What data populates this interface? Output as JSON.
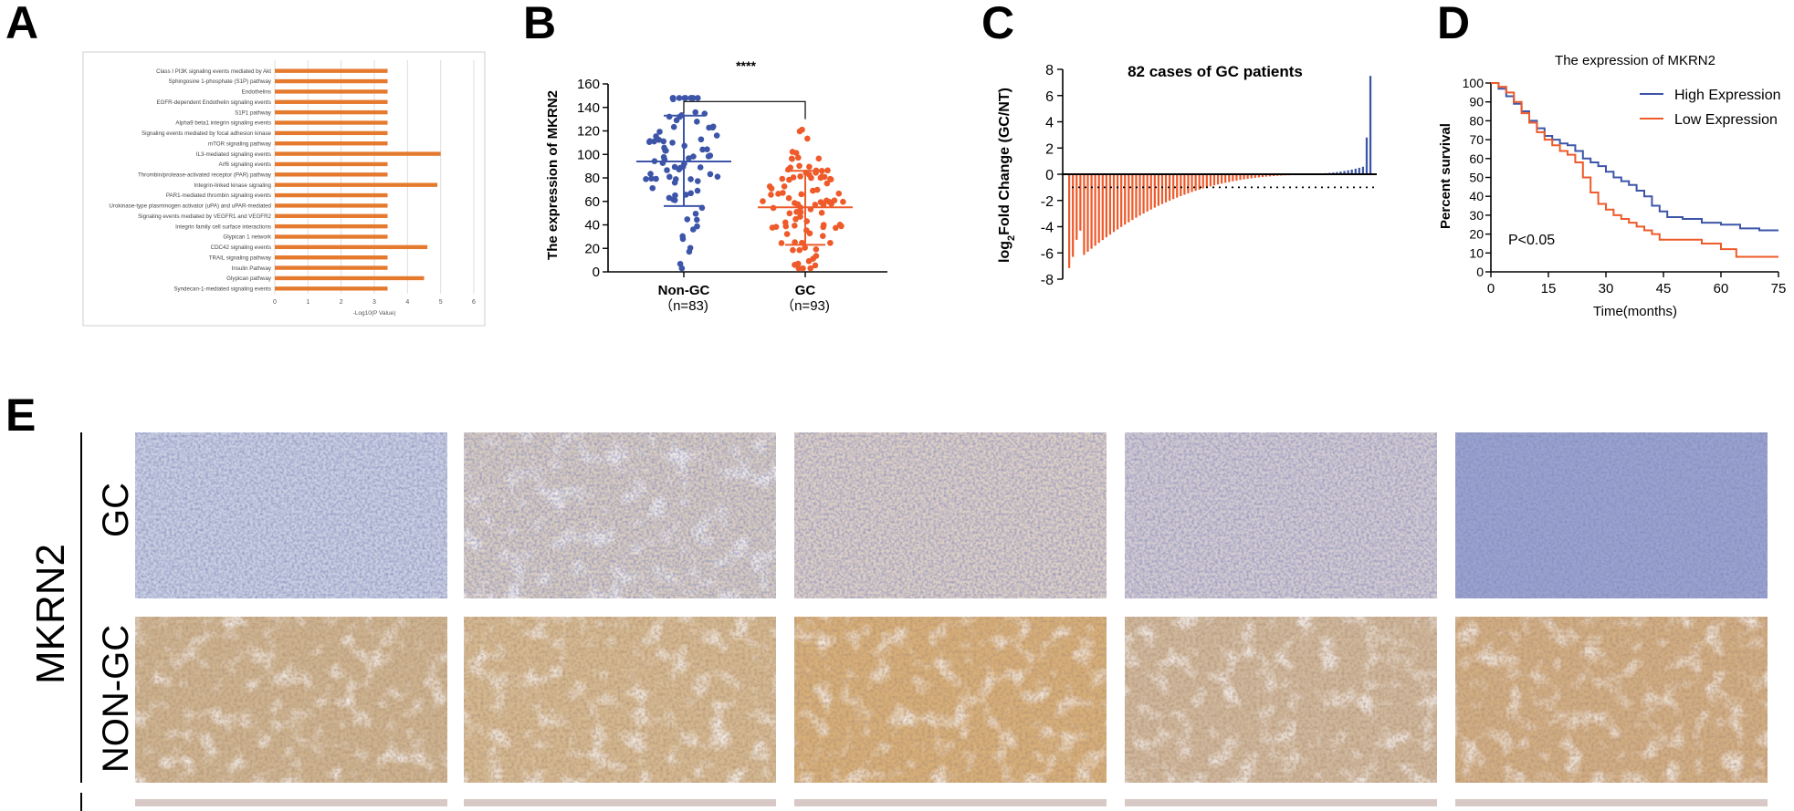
{
  "panel_letters": [
    "A",
    "B",
    "C",
    "D",
    "E"
  ],
  "chart_data": [
    {
      "panel": "A",
      "type": "bar",
      "orientation": "horizontal",
      "categories": [
        "Class I PI3K signaling events mediated by Akt",
        "Sphingosine 1-phosphate (S1P) pathway",
        "Endothelins",
        "EGFR-dependent Endothelin signaling events",
        "S1P1 pathway",
        "Alpha9 beta1 integrin signaling events",
        "Signaling events mediated by focal adhesion kinase",
        "mTOR signaling pathway",
        "IL3-mediated signaling events",
        "Arf6 signaling events",
        "Thrombin/protease-activated receptor (PAR) pathway",
        "Integrin-linked kinase signaling",
        "PAR1-mediated thrombin signaling events",
        "Urokinase-type plasminogen activator (uPA) and uPAR-mediated",
        "Signaling events mediated by VEGFR1 and VEGFR2",
        "Integrin family cell surface interactions",
        "Glypican 1 network",
        "CDC42 signaling events",
        "TRAIL signaling pathway",
        "Insulin Pathway",
        "Glypican pathway",
        "Syndecan-1-mediated signaling events"
      ],
      "values": [
        3.4,
        3.4,
        3.4,
        3.4,
        3.4,
        3.4,
        3.4,
        3.4,
        5.0,
        3.4,
        3.4,
        4.9,
        3.4,
        3.4,
        3.4,
        3.4,
        3.4,
        4.6,
        3.4,
        3.4,
        4.5,
        3.4
      ],
      "xlabel": "-Log10(P Value)",
      "xticks": [
        "0",
        "1",
        "2",
        "3",
        "4",
        "5",
        "6"
      ],
      "xlim": [
        0,
        6
      ],
      "grid": true,
      "bar_color": "#e57a2e"
    },
    {
      "panel": "B",
      "type": "scatter",
      "ylabel": "The expression of MKRN2",
      "ylim": [
        0,
        160
      ],
      "yticks": [
        "0",
        "20",
        "40",
        "60",
        "80",
        "100",
        "120",
        "140",
        "160"
      ],
      "groups": [
        {
          "name": "Non-GC",
          "n_label": "（n=83)",
          "n": 83,
          "mean": 94,
          "sd_low": 56,
          "sd_high": 133,
          "color": "#3d55a8"
        },
        {
          "name": "GC",
          "n_label": "（n=93)",
          "n": 93,
          "mean": 55,
          "sd_low": 23,
          "sd_high": 86,
          "color": "#ee5a2a"
        }
      ],
      "significance": "****"
    },
    {
      "panel": "C",
      "type": "bar",
      "title": "82 cases of GC patients",
      "ylabel_base": "log",
      "ylabel_sub": "2",
      "ylabel_rest": "Fold Change (GC/NT)",
      "ylim": [
        -8,
        8
      ],
      "yticks": [
        "-8",
        "-6",
        "-4",
        "-2",
        "0",
        "2",
        "4",
        "6",
        "8"
      ],
      "n_cases": 82,
      "threshold": -1,
      "down_color": "#ee5a2a",
      "up_color": "#3d55a8",
      "values_summary": {
        "min": -6.9,
        "max": 7.5,
        "n_down": 65,
        "n_up": 17
      }
    },
    {
      "panel": "D",
      "type": "line",
      "title": "The expression of MKRN2",
      "xlabel": "Time(months)",
      "ylabel": "Percent survival",
      "xlim": [
        0,
        75
      ],
      "ylim": [
        0,
        100
      ],
      "xticks": [
        "0",
        "15",
        "30",
        "45",
        "60",
        "75"
      ],
      "yticks": [
        "0",
        "10",
        "20",
        "30",
        "40",
        "50",
        "60",
        "70",
        "80",
        "90",
        "100"
      ],
      "annotation": "P<0.05",
      "legend_position": "top-right",
      "series": [
        {
          "name": "High Expression",
          "color": "#3d55a8",
          "x": [
            0,
            2,
            4,
            6,
            8,
            10,
            12,
            14,
            16,
            18,
            20,
            22,
            24,
            26,
            28,
            30,
            32,
            34,
            36,
            38,
            40,
            42,
            44,
            46,
            50,
            55,
            60,
            65,
            70,
            75
          ],
          "y": [
            100,
            97,
            93,
            89,
            85,
            80,
            76,
            72,
            70,
            68,
            67,
            64,
            60,
            58,
            56,
            53,
            50,
            48,
            46,
            43,
            40,
            35,
            32,
            29,
            28,
            26,
            25,
            23,
            22,
            22
          ]
        },
        {
          "name": "Low Expression",
          "color": "#ee5a2a",
          "x": [
            0,
            2,
            4,
            6,
            8,
            10,
            12,
            14,
            16,
            18,
            20,
            22,
            24,
            26,
            28,
            30,
            32,
            34,
            36,
            38,
            40,
            42,
            44,
            50,
            55,
            60,
            64,
            70,
            75
          ],
          "y": [
            100,
            98,
            95,
            90,
            84,
            79,
            74,
            70,
            67,
            64,
            62,
            58,
            50,
            42,
            36,
            33,
            30,
            28,
            26,
            24,
            22,
            20,
            17,
            17,
            15,
            12,
            8,
            8,
            8
          ]
        }
      ]
    }
  ],
  "panel_e": {
    "side_label": "MKRN2",
    "row_labels": [
      "GC",
      "NON-GC"
    ],
    "n_columns": 5
  }
}
